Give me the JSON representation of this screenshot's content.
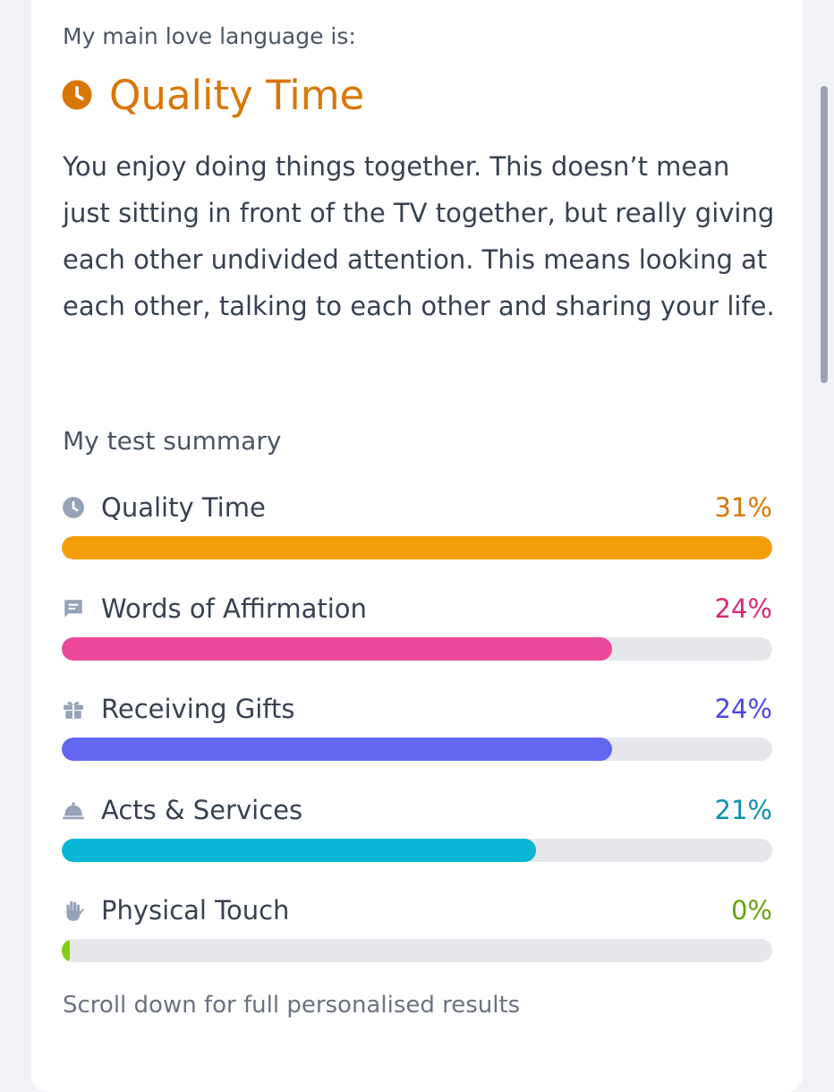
{
  "header": {
    "intro": "My main love language is:",
    "title": "Quality Time",
    "title_icon": "clock-icon",
    "accent": "#d97706"
  },
  "description": "You enjoy doing things together. This doesn’t mean just sitting in front of the TV together, but really giving each other undivided attention. This means looking at each other, talking to each other and sharing your life.",
  "summary": {
    "heading": "My test summary",
    "items": [
      {
        "label": "Quality Time",
        "percent": "31%",
        "fill_fraction": 1.0,
        "color": "#f59e0b",
        "text_color": "#d97706",
        "icon": "clock-icon"
      },
      {
        "label": "Words of Affirmation",
        "percent": "24%",
        "fill_fraction": 0.774,
        "color": "#ec4899",
        "text_color": "#db2777",
        "icon": "chat-icon"
      },
      {
        "label": "Receiving Gifts",
        "percent": "24%",
        "fill_fraction": 0.774,
        "color": "#6366f1",
        "text_color": "#4f46e5",
        "icon": "gift-icon"
      },
      {
        "label": "Acts & Services",
        "percent": "21%",
        "fill_fraction": 0.667,
        "color": "#06b6d4",
        "text_color": "#0891b2",
        "icon": "service-bell-icon"
      },
      {
        "label": "Physical Touch",
        "percent": "0%",
        "fill_fraction": 0.0,
        "color": "#84cc16",
        "text_color": "#65a30d",
        "icon": "hand-icon"
      }
    ]
  },
  "footer": {
    "note": "Scroll down for full personalised results"
  }
}
